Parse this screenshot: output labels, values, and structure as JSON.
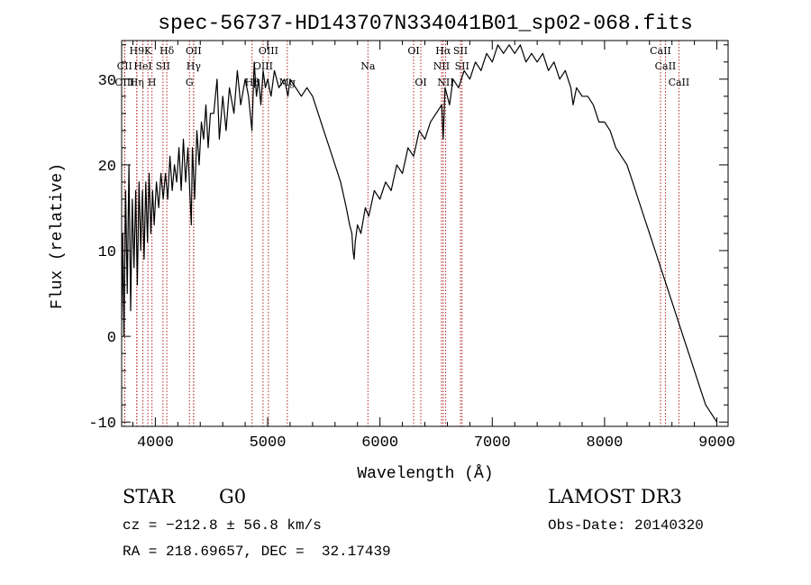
{
  "chart_data": {
    "type": "line",
    "title": "spec-56737-HD143707N334041B01_sp02-068.fits",
    "xlabel": "Wavelength (Å)",
    "ylabel": "Flux (relative)",
    "xlim": [
      3700,
      9100
    ],
    "ylim": [
      -10.5,
      34.5
    ],
    "grid": false,
    "x_ticks": [
      4000,
      5000,
      6000,
      7000,
      8000,
      9000
    ],
    "y_ticks": [
      -10,
      0,
      10,
      20,
      30
    ],
    "series": [
      {
        "color": "#000000",
        "points": [
          [
            3700,
            2
          ],
          [
            3710,
            12
          ],
          [
            3720,
            0
          ],
          [
            3735,
            17
          ],
          [
            3750,
            5
          ],
          [
            3765,
            20
          ],
          [
            3780,
            3
          ],
          [
            3795,
            16
          ],
          [
            3810,
            8
          ],
          [
            3825,
            17
          ],
          [
            3840,
            6
          ],
          [
            3855,
            18
          ],
          [
            3870,
            10
          ],
          [
            3885,
            17
          ],
          [
            3900,
            9
          ],
          [
            3915,
            18
          ],
          [
            3930,
            11
          ],
          [
            3945,
            19
          ],
          [
            3960,
            12
          ],
          [
            3975,
            17
          ],
          [
            3990,
            13
          ],
          [
            4010,
            18
          ],
          [
            4030,
            15
          ],
          [
            4050,
            19
          ],
          [
            4070,
            16
          ],
          [
            4090,
            19
          ],
          [
            4110,
            16
          ],
          [
            4130,
            21
          ],
          [
            4150,
            17
          ],
          [
            4170,
            20
          ],
          [
            4190,
            18
          ],
          [
            4210,
            22
          ],
          [
            4230,
            17
          ],
          [
            4250,
            23
          ],
          [
            4270,
            18
          ],
          [
            4290,
            22
          ],
          [
            4310,
            16
          ],
          [
            4320,
            13
          ],
          [
            4330,
            22
          ],
          [
            4350,
            16
          ],
          [
            4370,
            24
          ],
          [
            4390,
            20
          ],
          [
            4410,
            25
          ],
          [
            4430,
            23
          ],
          [
            4450,
            27
          ],
          [
            4470,
            22
          ],
          [
            4490,
            26
          ],
          [
            4520,
            26
          ],
          [
            4550,
            30
          ],
          [
            4570,
            23
          ],
          [
            4600,
            28
          ],
          [
            4630,
            24
          ],
          [
            4660,
            29
          ],
          [
            4700,
            26
          ],
          [
            4730,
            31
          ],
          [
            4760,
            27
          ],
          [
            4800,
            30
          ],
          [
            4830,
            28
          ],
          [
            4860,
            24
          ],
          [
            4880,
            32
          ],
          [
            4900,
            28
          ],
          [
            4920,
            30
          ],
          [
            4940,
            27
          ],
          [
            4960,
            31
          ],
          [
            4980,
            29
          ],
          [
            5000,
            30
          ],
          [
            5030,
            28
          ],
          [
            5060,
            31
          ],
          [
            5100,
            29
          ],
          [
            5150,
            30
          ],
          [
            5180,
            28
          ],
          [
            5200,
            30
          ],
          [
            5250,
            29
          ],
          [
            5300,
            28
          ],
          [
            5350,
            29
          ],
          [
            5400,
            28
          ],
          [
            5450,
            26
          ],
          [
            5500,
            24
          ],
          [
            5550,
            22
          ],
          [
            5600,
            20
          ],
          [
            5650,
            18
          ],
          [
            5700,
            15
          ],
          [
            5730,
            13
          ],
          [
            5750,
            12
          ],
          [
            5760,
            10
          ],
          [
            5770,
            9
          ],
          [
            5780,
            11
          ],
          [
            5800,
            13
          ],
          [
            5830,
            12
          ],
          [
            5870,
            15
          ],
          [
            5900,
            14
          ],
          [
            5950,
            17
          ],
          [
            6000,
            16
          ],
          [
            6050,
            18
          ],
          [
            6100,
            17
          ],
          [
            6150,
            20
          ],
          [
            6200,
            19
          ],
          [
            6250,
            22
          ],
          [
            6300,
            21
          ],
          [
            6350,
            24
          ],
          [
            6400,
            23
          ],
          [
            6450,
            25
          ],
          [
            6500,
            26
          ],
          [
            6550,
            27
          ],
          [
            6563,
            23
          ],
          [
            6580,
            29
          ],
          [
            6620,
            27
          ],
          [
            6650,
            30
          ],
          [
            6700,
            29
          ],
          [
            6750,
            31
          ],
          [
            6800,
            30
          ],
          [
            6850,
            32
          ],
          [
            6900,
            31
          ],
          [
            6950,
            33
          ],
          [
            7000,
            32
          ],
          [
            7050,
            34
          ],
          [
            7100,
            33
          ],
          [
            7150,
            34
          ],
          [
            7200,
            33
          ],
          [
            7250,
            34
          ],
          [
            7300,
            32
          ],
          [
            7350,
            33
          ],
          [
            7400,
            32
          ],
          [
            7450,
            33
          ],
          [
            7500,
            31
          ],
          [
            7550,
            32
          ],
          [
            7600,
            30
          ],
          [
            7650,
            31
          ],
          [
            7700,
            29
          ],
          [
            7720,
            27
          ],
          [
            7750,
            29
          ],
          [
            7800,
            28
          ],
          [
            7850,
            28
          ],
          [
            7900,
            27
          ],
          [
            7950,
            25
          ],
          [
            8000,
            25
          ],
          [
            8050,
            24
          ],
          [
            8100,
            22
          ],
          [
            8150,
            21
          ],
          [
            8200,
            20
          ],
          [
            8250,
            18
          ],
          [
            8300,
            16
          ],
          [
            8350,
            14
          ],
          [
            8400,
            12
          ],
          [
            8450,
            10
          ],
          [
            8500,
            8
          ],
          [
            8550,
            6
          ],
          [
            8600,
            4
          ],
          [
            8650,
            2
          ],
          [
            8700,
            0
          ],
          [
            8750,
            -2
          ],
          [
            8800,
            -4
          ],
          [
            8850,
            -6
          ],
          [
            8900,
            -8
          ],
          [
            8950,
            -9
          ],
          [
            9000,
            -10
          ]
        ]
      }
    ],
    "lines": [
      {
        "label": "H9",
        "x": 3835,
        "row": 0
      },
      {
        "label": "K",
        "x": 3934,
        "row": 0
      },
      {
        "label": "Hδ",
        "x": 4102,
        "row": 0
      },
      {
        "label": "OII",
        "x": 4341,
        "row": 0
      },
      {
        "label": "OIII",
        "x": 5007,
        "row": 0
      },
      {
        "label": "OI",
        "x": 6300,
        "row": 0
      },
      {
        "label": "Hα",
        "x": 6563,
        "row": 0
      },
      {
        "label": "SII",
        "x": 6717,
        "row": 0
      },
      {
        "label": "CaII",
        "x": 8498,
        "row": 0
      },
      {
        "label": "CII",
        "x": 3727,
        "row": 1
      },
      {
        "label": "HeI",
        "x": 3889,
        "row": 1
      },
      {
        "label": "SII",
        "x": 4068,
        "row": 1
      },
      {
        "label": "Hγ",
        "x": 4341,
        "row": 1
      },
      {
        "label": "OIII",
        "x": 4959,
        "row": 1
      },
      {
        "label": "Na",
        "x": 5893,
        "row": 1
      },
      {
        "label": "NII",
        "x": 6548,
        "row": 1
      },
      {
        "label": "SII",
        "x": 6731,
        "row": 1
      },
      {
        "label": "CaII",
        "x": 8542,
        "row": 1
      },
      {
        "label": "OIII",
        "x": 3727,
        "row": 2
      },
      {
        "label": "Hη",
        "x": 3835,
        "row": 2
      },
      {
        "label": "H",
        "x": 3970,
        "row": 2
      },
      {
        "label": "G",
        "x": 4304,
        "row": 2
      },
      {
        "label": "Hβ",
        "x": 4861,
        "row": 2
      },
      {
        "label": "Mg",
        "x": 5175,
        "row": 2
      },
      {
        "label": "OI",
        "x": 6364,
        "row": 2
      },
      {
        "label": "NII",
        "x": 6584,
        "row": 2
      },
      {
        "label": "CaII",
        "x": 8662,
        "row": 2
      }
    ]
  },
  "footer": {
    "object_type": "STAR",
    "subclass": "G0",
    "survey": "LAMOST DR3",
    "cz": "cz = −212.8 ± 56.8 km/s",
    "obs_date": "Obs-Date: 20140320",
    "coords": "RA = 218.69657, DEC =  32.17439"
  }
}
